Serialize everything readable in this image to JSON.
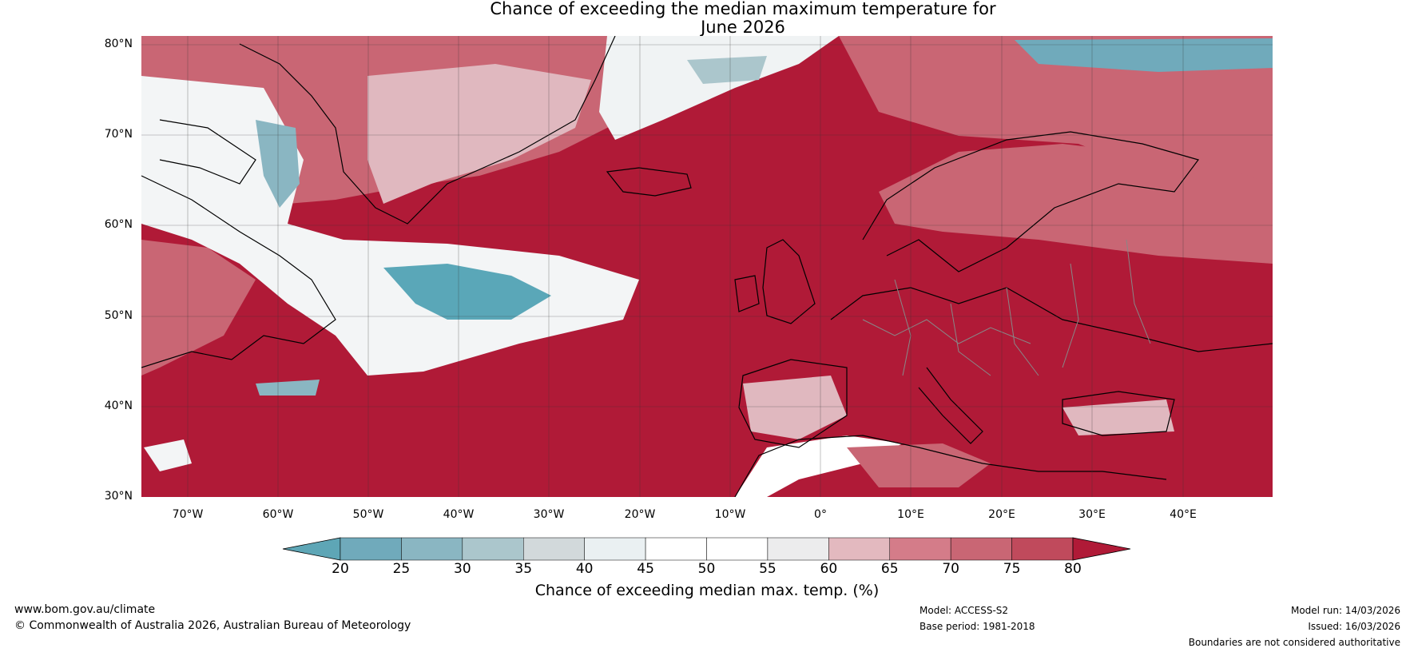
{
  "title": {
    "line1": "Chance of exceeding the median maximum temperature for",
    "line2": "June 2026"
  },
  "map": {
    "latitude_labels": [
      "80°N",
      "70°N",
      "60°N",
      "50°N",
      "40°N",
      "30°N"
    ],
    "longitude_labels": [
      "70°W",
      "60°W",
      "50°W",
      "40°W",
      "30°W",
      "20°W",
      "10°W",
      "0°",
      "10°E",
      "20°E",
      "30°E",
      "40°E"
    ],
    "colors": {
      "dominant_red": "#b01a37",
      "light_pink": "#e0b8bf",
      "pale_blue": "#5aa7b8"
    }
  },
  "colorbar": {
    "tick_labels": [
      "20",
      "25",
      "30",
      "35",
      "40",
      "45",
      "50",
      "55",
      "60",
      "65",
      "70",
      "75",
      "80"
    ],
    "segment_colors": [
      "#5ea6b6",
      "#70aabb",
      "#8ab6c2",
      "#abc6cc",
      "#d2d9db",
      "#eaf0f2",
      "#ffffff",
      "#ffffff",
      "#ececed",
      "#e3b9bf",
      "#d47c89",
      "#c96674",
      "#c04a5c",
      "#b01a37"
    ],
    "label": "Chance of exceeding median max. temp. (%)"
  },
  "footer": {
    "website": "www.bom.gov.au/climate",
    "copyright": "© Commonwealth of Australia 2026, Australian Bureau of Meteorology",
    "model": "Model: ACCESS-S2",
    "base_period": "Base period: 1981-2018",
    "model_run": "Model run: 14/03/2026",
    "issued": "Issued: 16/03/2026",
    "disclaimer": "Boundaries are not considered authoritative"
  }
}
